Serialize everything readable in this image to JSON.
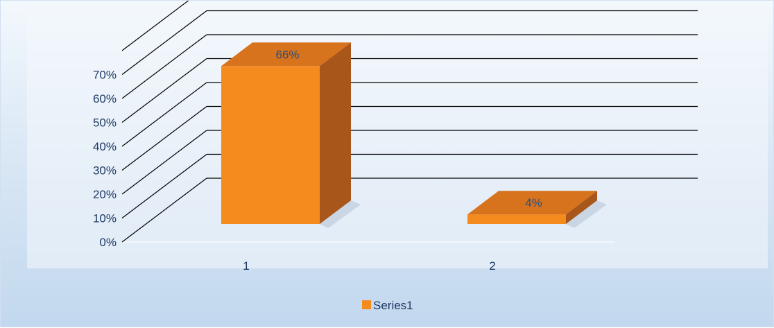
{
  "chart_data": {
    "type": "bar",
    "title": "",
    "xlabel": "",
    "ylabel": "",
    "categories": [
      "1",
      "2"
    ],
    "series": [
      {
        "name": "Series1",
        "values": [
          0.66,
          0.04
        ],
        "data_labels": [
          "66%",
          "4%"
        ]
      }
    ],
    "y_ticks": [
      "0%",
      "10%",
      "20%",
      "30%",
      "40%",
      "50%",
      "60%",
      "70%"
    ],
    "ylim": [
      0,
      0.7
    ],
    "grid": true,
    "legend_position": "bottom",
    "style": "3d",
    "colors": {
      "bar_front": "#f58a1f",
      "bar_top": "#d6731c",
      "bar_side": "#a8561a",
      "grid": "#000000",
      "text": "#1f3864"
    }
  }
}
